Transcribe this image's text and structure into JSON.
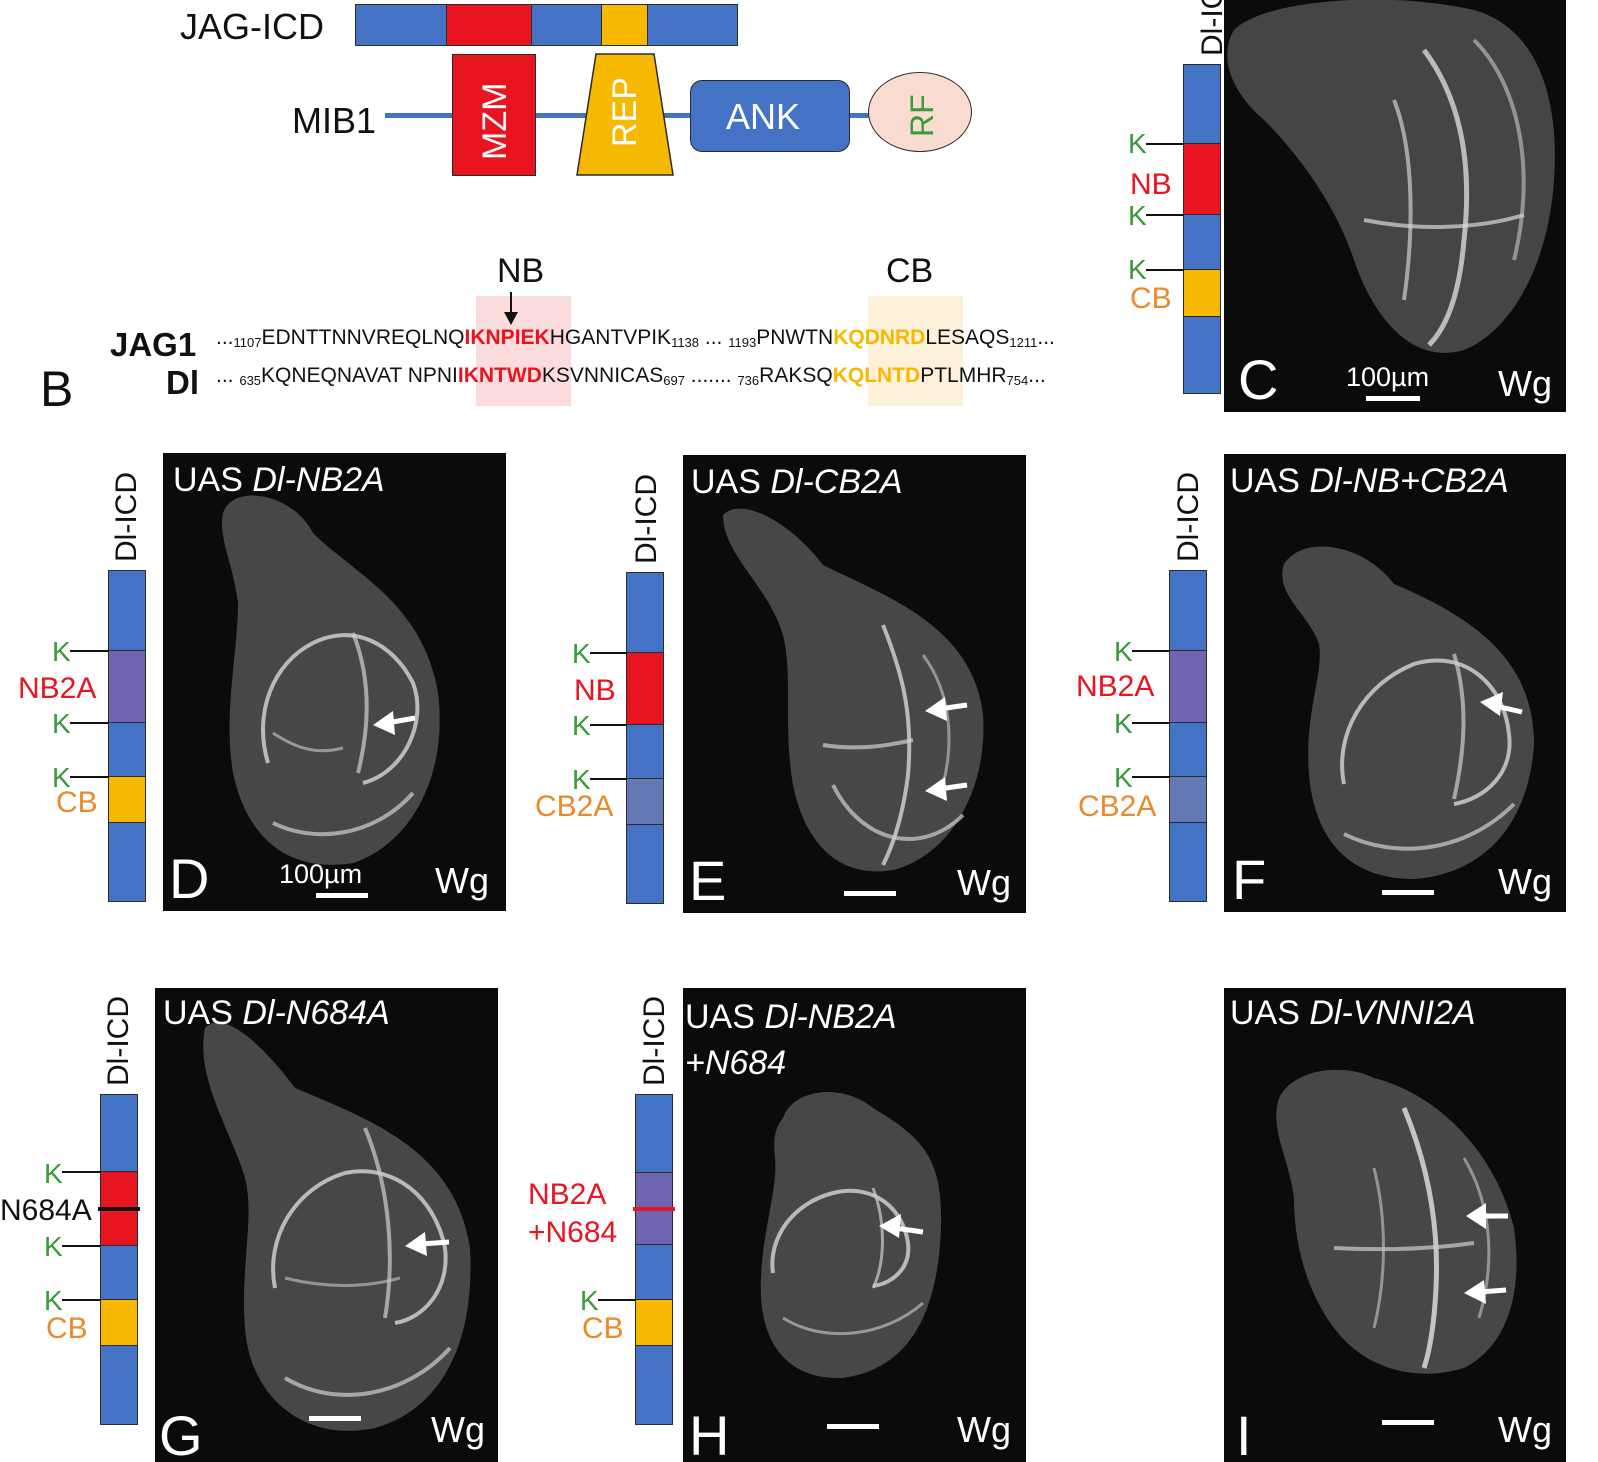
{
  "colors": {
    "blue": "#4472c4",
    "red": "#e8141f",
    "yellow": "#f7b800",
    "purple": "#6f65b1",
    "grayblue": "#6478b4",
    "green": "#3a9a3a",
    "orange": "#ea8a2c",
    "rf_fill": "#f8dccf"
  },
  "panel_a": {
    "jag_icd": "JAG-ICD",
    "mib1": "MIB1",
    "mzm": "MZM",
    "rep": "REP",
    "ank": "ANK",
    "rf": "RF"
  },
  "panel_b": {
    "letter": "B",
    "nb": "NB",
    "cb": "CB",
    "jag1": {
      "name": "JAG1",
      "pre": "...",
      "start_num": "1107",
      "seq1": "EDNTTNNVREQLNQ",
      "nb_motif": "IKNPIEK",
      "seq2": "HGANTVPIK",
      "num2": "1138",
      "gap": " ... ",
      "num3": "1193",
      "seq3": "PNWTN",
      "cb_motif": "KQDNRD",
      "seq4": "LESAQS",
      "num4": "1211",
      "post": "..."
    },
    "dl": {
      "name": "Dl",
      "pre": "... ",
      "start_num": "635",
      "seq1": "KQNEQNAVAT NPNI",
      "nb_motif": "IKNTWD",
      "seq2": "KSVNNICAS",
      "num2": "697",
      "gap": " ....... ",
      "num3": "736",
      "seq3": "RAKSQ",
      "cb_motif": "KQLNTD",
      "seq4": "PTLMHR",
      "num4": "754",
      "post": "..."
    }
  },
  "panel_c": {
    "letter": "C",
    "vert": "Dl-IC",
    "k": "K",
    "nb": "NB",
    "cb": "CB",
    "scale": "100µm",
    "stain": "Wg"
  },
  "panel_d": {
    "letter": "D",
    "title_prefix": "UAS ",
    "title_italic": "Dl-NB2A",
    "vert": "Dl-ICD",
    "k": "K",
    "mut": "NB2A",
    "cb": "CB",
    "scale": "100µm",
    "stain": "Wg"
  },
  "panel_e": {
    "letter": "E",
    "title_prefix": "UAS ",
    "title_italic": "Dl-CB2A",
    "vert": "Dl-ICD",
    "k": "K",
    "nb": "NB",
    "mut": "CB2A",
    "stain": "Wg"
  },
  "panel_f": {
    "letter": "F",
    "title_prefix": "UAS ",
    "title_italic": "Dl-NB+CB2A",
    "vert": "Dl-ICD",
    "k": "K",
    "mut1": "NB2A",
    "mut2": "CB2A",
    "stain": "Wg"
  },
  "panel_g": {
    "letter": "G",
    "title_prefix": "UAS ",
    "title_italic": "Dl-N684A",
    "vert": "Dl-ICD",
    "k": "K",
    "mut": "N684A",
    "cb": "CB",
    "stain": "Wg"
  },
  "panel_h": {
    "letter": "H",
    "title_prefix": "UAS ",
    "title_italic": "Dl-NB2A",
    "title_line2": "+N684",
    "vert": "Dl-ICD",
    "k": "K",
    "mut_line1": "NB2A",
    "mut_line2": "+N684",
    "cb": "CB",
    "stain": "Wg"
  },
  "panel_i": {
    "letter": "I",
    "title_prefix": "UAS ",
    "title_italic": "Dl-VNNI2A",
    "stain": "Wg"
  }
}
